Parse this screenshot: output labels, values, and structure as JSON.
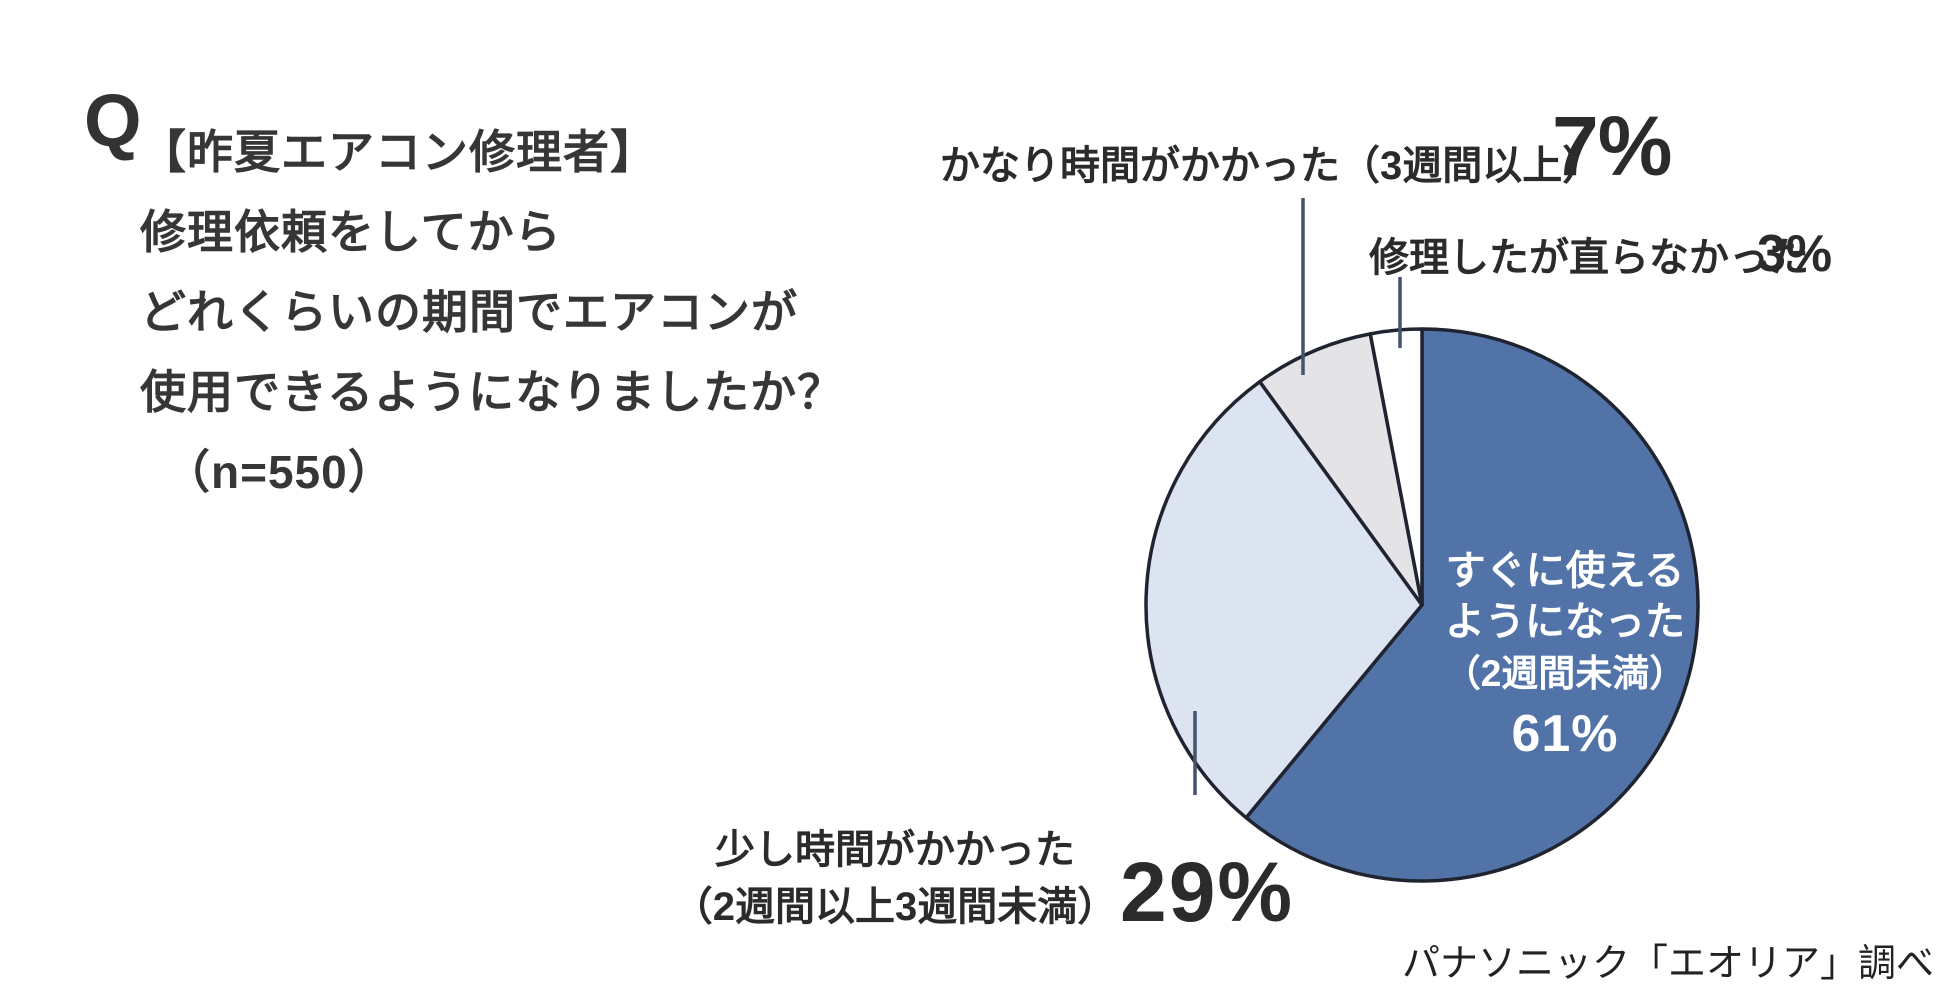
{
  "page": {
    "background": "#ffffff",
    "question_text_color": "#363636",
    "label_text_color": "#2b2b2b"
  },
  "question": {
    "q_mark": "Q",
    "lines": [
      "【昨夏エアコン修理者】",
      "修理依頼をしてから",
      "どれくらいの期間でエアコンが",
      "使用できるようになりましたか？",
      "（n=550）"
    ]
  },
  "chart_data": {
    "type": "pie",
    "n": 550,
    "unit": "%",
    "direction": "clockwise",
    "start_angle_deg": 0,
    "legend": "none",
    "label_style": "callout",
    "outline_color": "#1f2430",
    "leader_line_color": "#44546a",
    "slices": [
      {
        "label": "すぐに使えるようになった（2週間未満）",
        "value": 61,
        "color": "#5273a8",
        "text_color": "#ffffff"
      },
      {
        "label": "少し時間がかかった（2週間以上3週間未満）",
        "value": 29,
        "color": "#dce3f1"
      },
      {
        "label": "かなり時間がかかった（3週間以上）",
        "value": 7,
        "color": "#e4e4e6"
      },
      {
        "label": "修理したが直らなかった",
        "value": 3,
        "color": "#ffffff"
      }
    ]
  },
  "callouts": {
    "kanari": {
      "text": "かなり時間がかかった（3週間以上）",
      "pct": "7%"
    },
    "naoranakatta": {
      "text": "修理したが直らなかった",
      "pct": "3%"
    },
    "sugu": {
      "line1": "すぐに使える",
      "line2": "ようになった",
      "line3": "（2週間未満）",
      "pct": "61%"
    },
    "sukoshi": {
      "line1": "少し時間がかかった",
      "line2": "（2週間以上3週間未満）",
      "pct": "29%"
    }
  },
  "footer": {
    "source": "パナソニック「エオリア」調べ"
  }
}
